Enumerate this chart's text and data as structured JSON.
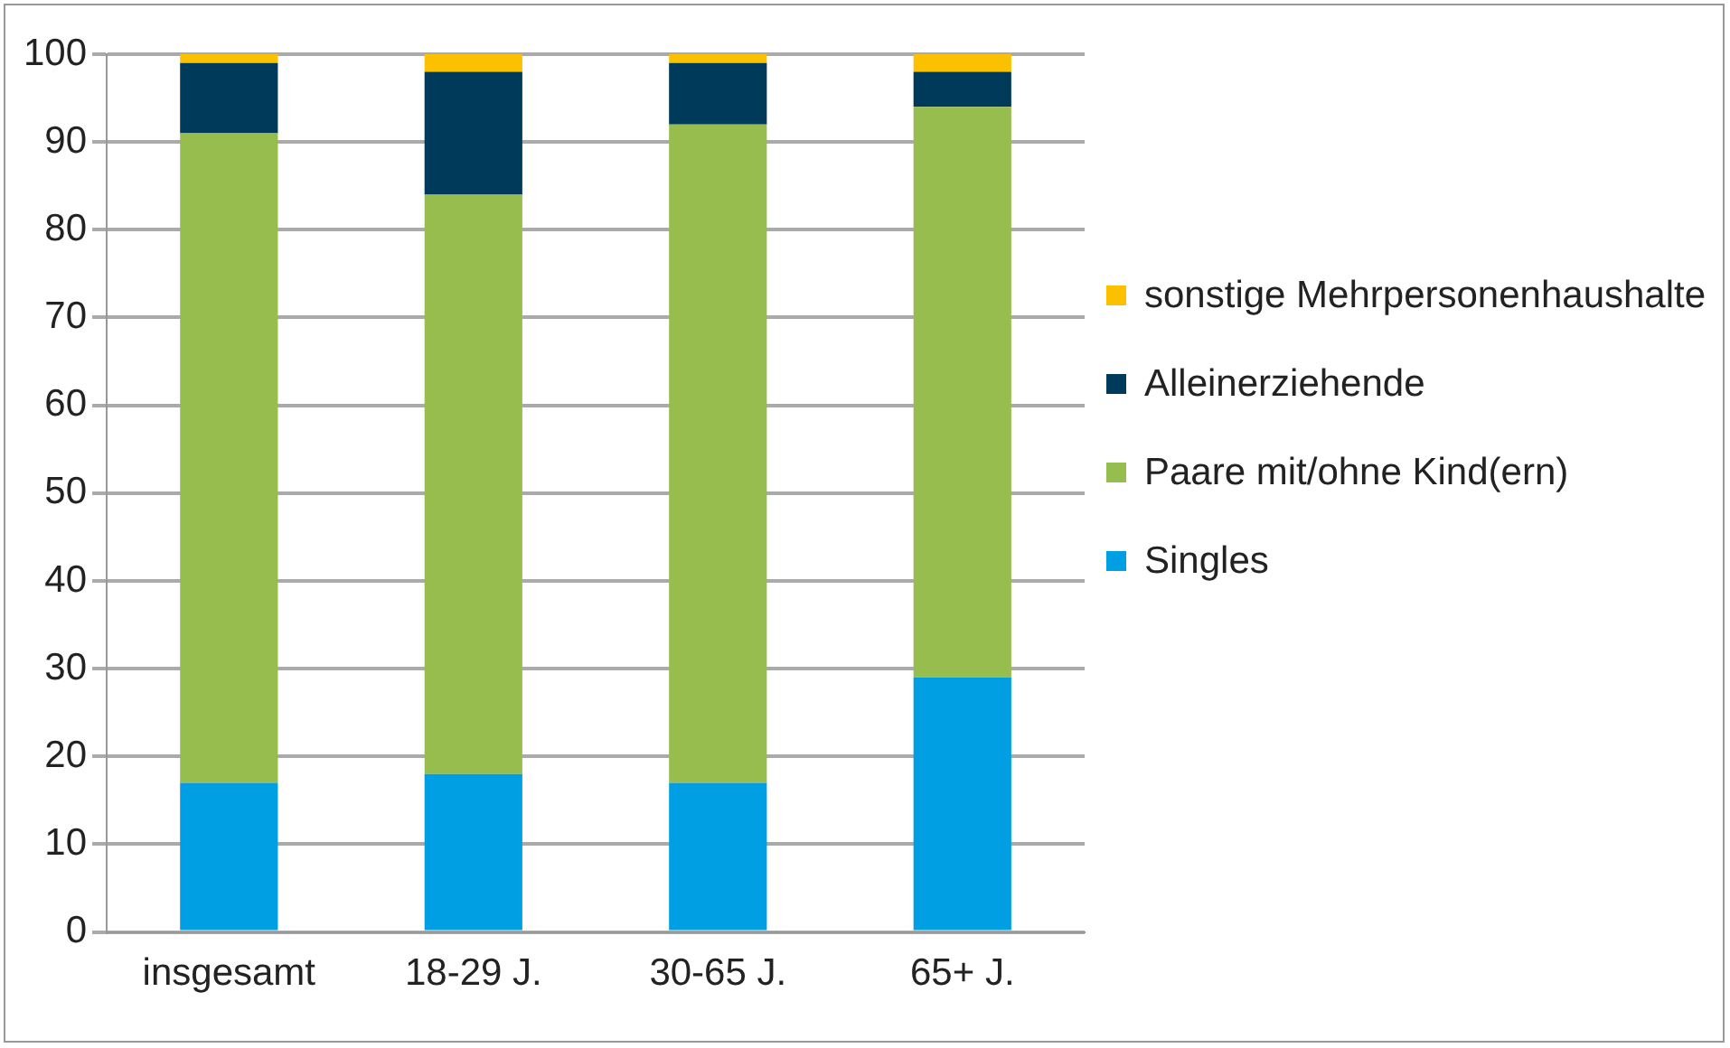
{
  "chart_data": {
    "type": "bar",
    "stacked": true,
    "categories": [
      "insgesamt",
      "18-29 J.",
      "30-65 J.",
      "65+ J."
    ],
    "series": [
      {
        "name": "Singles",
        "color": "#009fe3",
        "values": [
          17,
          18,
          17,
          29
        ]
      },
      {
        "name": "Paare mit/ohne Kind(ern)",
        "color": "#97bd4f",
        "values": [
          74,
          66,
          75,
          65
        ]
      },
      {
        "name": "Alleinerziehende",
        "color": "#003a5a",
        "values": [
          8,
          14,
          7,
          4
        ]
      },
      {
        "name": "sonstige Mehrpersonenhaushalte",
        "color": "#fbc000",
        "values": [
          1,
          2,
          1,
          2
        ]
      }
    ],
    "ylim": [
      0,
      100
    ],
    "yticks": [
      0,
      10,
      20,
      30,
      40,
      50,
      60,
      70,
      80,
      90,
      100
    ],
    "grid": "y",
    "legend": "right"
  }
}
